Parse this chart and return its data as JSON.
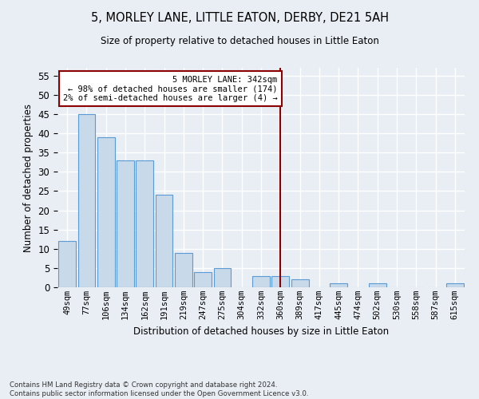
{
  "title": "5, MORLEY LANE, LITTLE EATON, DERBY, DE21 5AH",
  "subtitle": "Size of property relative to detached houses in Little Eaton",
  "xlabel": "Distribution of detached houses by size in Little Eaton",
  "ylabel": "Number of detached properties",
  "categories": [
    "49sqm",
    "77sqm",
    "106sqm",
    "134sqm",
    "162sqm",
    "191sqm",
    "219sqm",
    "247sqm",
    "275sqm",
    "304sqm",
    "332sqm",
    "360sqm",
    "389sqm",
    "417sqm",
    "445sqm",
    "474sqm",
    "502sqm",
    "530sqm",
    "558sqm",
    "587sqm",
    "615sqm"
  ],
  "values": [
    12,
    45,
    39,
    33,
    33,
    24,
    9,
    4,
    5,
    0,
    3,
    3,
    2,
    0,
    1,
    0,
    1,
    0,
    0,
    0,
    1
  ],
  "bar_color": "#c8d9ea",
  "bar_edge_color": "#5b9bd5",
  "background_color": "#e8eef4",
  "grid_color": "#ffffff",
  "annotation_text_line1": "5 MORLEY LANE: 342sqm",
  "annotation_text_line2": "← 98% of detached houses are smaller (174)",
  "annotation_text_line3": "2% of semi-detached houses are larger (4) →",
  "vline_color": "#8b0000",
  "annotation_box_color": "#ffffff",
  "annotation_box_edge": "#8b0000",
  "footer_line1": "Contains HM Land Registry data © Crown copyright and database right 2024.",
  "footer_line2": "Contains public sector information licensed under the Open Government Licence v3.0.",
  "ylim": [
    0,
    57
  ],
  "vline_x": 11.0
}
